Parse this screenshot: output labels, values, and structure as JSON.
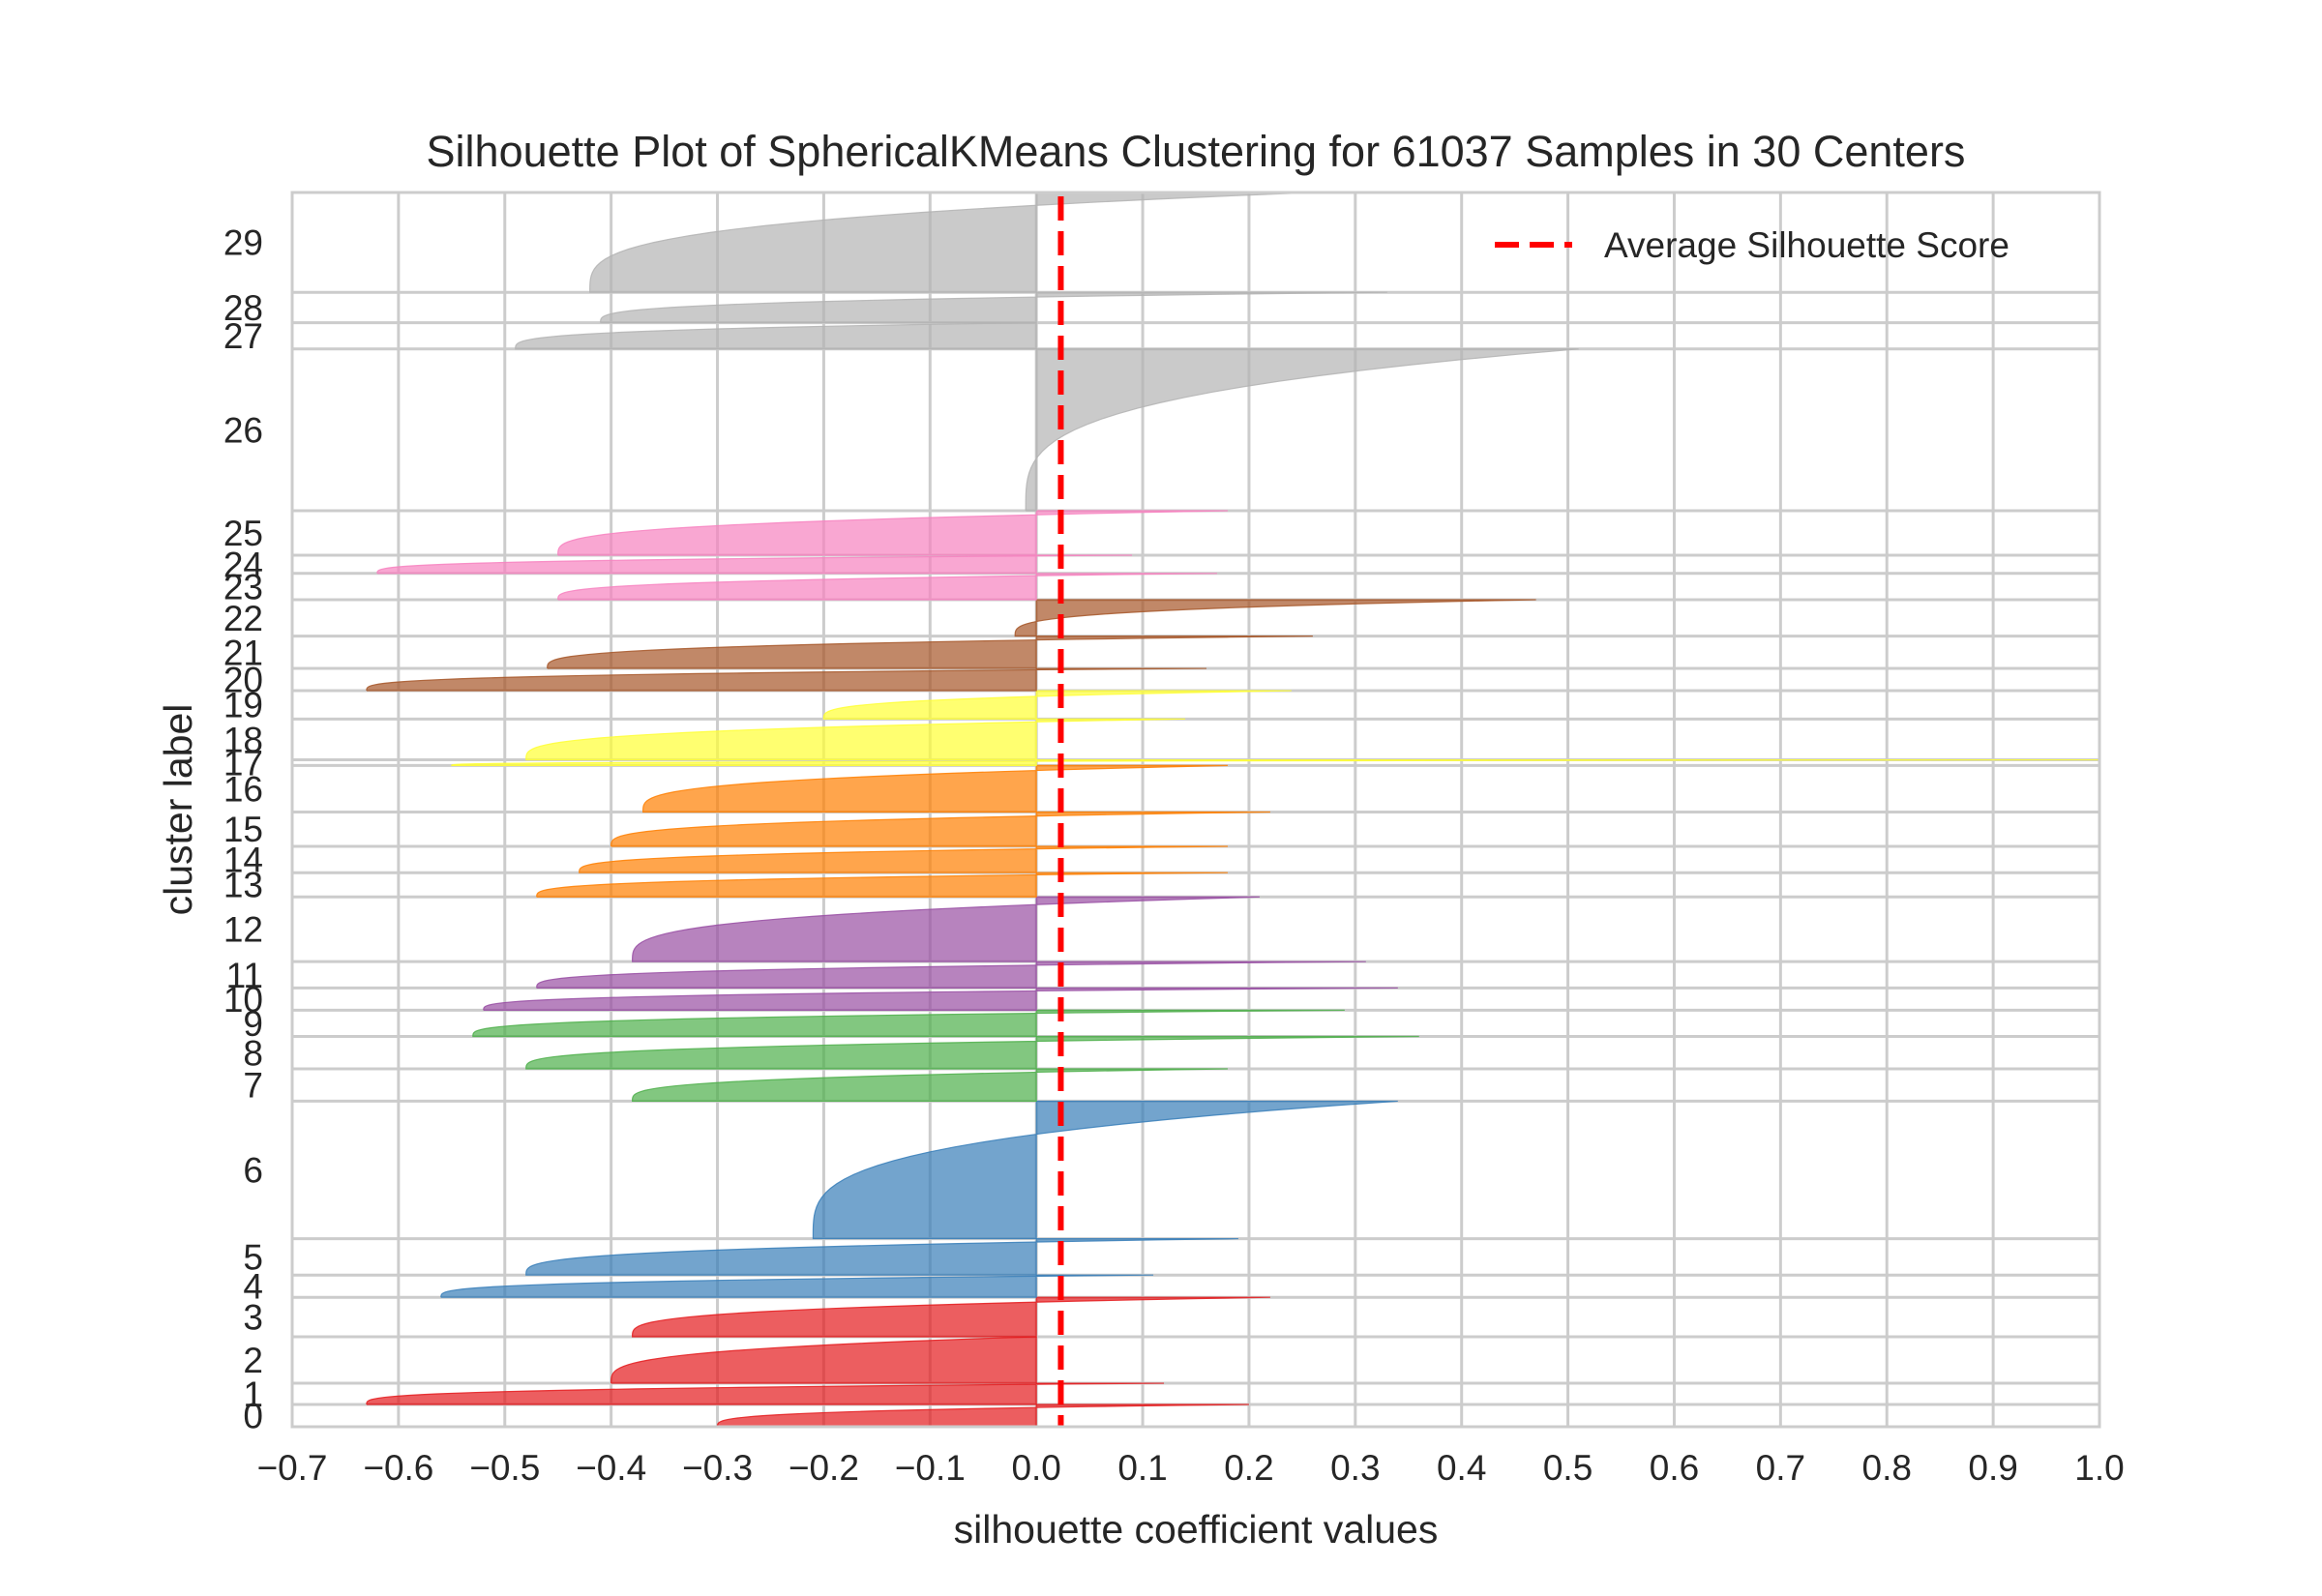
{
  "chart_data": {
    "type": "area",
    "title": "Silhouette Plot of SphericalKMeans Clustering for 61037 Samples in 30 Centers",
    "xlabel": "silhouette coefficient values",
    "ylabel": "cluster label",
    "xlim": [
      -0.7,
      1.0
    ],
    "ylim": [
      0,
      61037
    ],
    "x_ticks": [
      "−0.7",
      "−0.6",
      "−0.5",
      "−0.4",
      "−0.3",
      "−0.2",
      "−0.1",
      "0.0",
      "0.1",
      "0.2",
      "0.3",
      "0.4",
      "0.5",
      "0.6",
      "0.7",
      "0.8",
      "0.9",
      "1.0"
    ],
    "x_tick_values": [
      -0.7,
      -0.6,
      -0.5,
      -0.4,
      -0.3,
      -0.2,
      -0.1,
      0.0,
      0.1,
      0.2,
      0.3,
      0.4,
      0.5,
      0.6,
      0.7,
      0.8,
      0.9,
      1.0
    ],
    "average_silhouette_score": 0.023,
    "legend": {
      "label": "Average Silhouette Score",
      "position": "upper right",
      "color": "#ff0000",
      "style": "dashed"
    },
    "grid": true,
    "colors": {
      "gray": "#b3b3b3",
      "pink": "#f781bf",
      "brown": "#a65628",
      "yellow": "#ffff33",
      "orange": "#ff7f00",
      "purple": "#984ea3",
      "green": "#4daf4a",
      "blue": "#377eb8",
      "red": "#e41a1c"
    },
    "clusters": [
      {
        "label": "0",
        "y_lower": 0,
        "y_upper": 1100,
        "min": -0.3,
        "max": 0.2,
        "color": "red"
      },
      {
        "label": "1",
        "y_lower": 1100,
        "y_upper": 2150,
        "min": -0.63,
        "max": 0.12,
        "color": "red"
      },
      {
        "label": "2",
        "y_lower": 2150,
        "y_upper": 4450,
        "min": -0.4,
        "max": 0.0,
        "color": "red"
      },
      {
        "label": "3",
        "y_lower": 4450,
        "y_upper": 6400,
        "min": -0.38,
        "max": 0.22,
        "color": "red"
      },
      {
        "label": "4",
        "y_lower": 6400,
        "y_upper": 7500,
        "min": -0.56,
        "max": 0.11,
        "color": "blue"
      },
      {
        "label": "5",
        "y_lower": 7500,
        "y_upper": 9300,
        "min": -0.48,
        "max": 0.19,
        "color": "blue"
      },
      {
        "label": "6",
        "y_lower": 9300,
        "y_upper": 16100,
        "min": -0.21,
        "max": 0.34,
        "color": "blue"
      },
      {
        "label": "7",
        "y_lower": 16100,
        "y_upper": 17700,
        "min": -0.38,
        "max": 0.18,
        "color": "green"
      },
      {
        "label": "8",
        "y_lower": 17700,
        "y_upper": 19300,
        "min": -0.48,
        "max": 0.36,
        "color": "green"
      },
      {
        "label": "9",
        "y_lower": 19300,
        "y_upper": 20600,
        "min": -0.53,
        "max": 0.29,
        "color": "green"
      },
      {
        "label": "10",
        "y_lower": 20600,
        "y_upper": 21700,
        "min": -0.52,
        "max": 0.34,
        "color": "purple"
      },
      {
        "label": "11",
        "y_lower": 21700,
        "y_upper": 23000,
        "min": -0.47,
        "max": 0.31,
        "color": "purple"
      },
      {
        "label": "12",
        "y_lower": 23000,
        "y_upper": 26200,
        "min": -0.38,
        "max": 0.21,
        "color": "purple"
      },
      {
        "label": "13",
        "y_lower": 26200,
        "y_upper": 27400,
        "min": -0.47,
        "max": 0.18,
        "color": "orange"
      },
      {
        "label": "14",
        "y_lower": 27400,
        "y_upper": 28700,
        "min": -0.43,
        "max": 0.18,
        "color": "orange"
      },
      {
        "label": "15",
        "y_lower": 28700,
        "y_upper": 30400,
        "min": -0.4,
        "max": 0.22,
        "color": "orange"
      },
      {
        "label": "16",
        "y_lower": 30400,
        "y_upper": 32700,
        "min": -0.37,
        "max": 0.18,
        "color": "orange"
      },
      {
        "label": "17",
        "y_lower": 32700,
        "y_upper": 32980,
        "min": -0.55,
        "max": 1.0,
        "color": "yellow"
      },
      {
        "label": "18",
        "y_lower": 32980,
        "y_upper": 35000,
        "min": -0.48,
        "max": 0.14,
        "color": "yellow"
      },
      {
        "label": "19",
        "y_lower": 35000,
        "y_upper": 36400,
        "min": -0.2,
        "max": 0.24,
        "color": "yellow"
      },
      {
        "label": "20",
        "y_lower": 36400,
        "y_upper": 37500,
        "min": -0.63,
        "max": 0.16,
        "color": "brown"
      },
      {
        "label": "21",
        "y_lower": 37500,
        "y_upper": 39100,
        "min": -0.46,
        "max": 0.26,
        "color": "brown"
      },
      {
        "label": "22",
        "y_lower": 39100,
        "y_upper": 40900,
        "min": -0.02,
        "max": 0.47,
        "color": "brown"
      },
      {
        "label": "23",
        "y_lower": 40900,
        "y_upper": 42200,
        "min": -0.45,
        "max": 0.17,
        "color": "pink"
      },
      {
        "label": "24",
        "y_lower": 42200,
        "y_upper": 43100,
        "min": -0.62,
        "max": 0.09,
        "color": "pink"
      },
      {
        "label": "25",
        "y_lower": 43100,
        "y_upper": 45300,
        "min": -0.45,
        "max": 0.18,
        "color": "pink"
      },
      {
        "label": "26",
        "y_lower": 45300,
        "y_upper": 53300,
        "min": -0.01,
        "max": 0.51,
        "color": "gray"
      },
      {
        "label": "27",
        "y_lower": 53300,
        "y_upper": 54600,
        "min": -0.49,
        "max": 0.0,
        "color": "gray"
      },
      {
        "label": "28",
        "y_lower": 54600,
        "y_upper": 56100,
        "min": -0.41,
        "max": 0.33,
        "color": "gray"
      },
      {
        "label": "29",
        "y_lower": 56100,
        "y_upper": 61037,
        "min": -0.42,
        "max": 0.26,
        "color": "gray"
      }
    ]
  }
}
